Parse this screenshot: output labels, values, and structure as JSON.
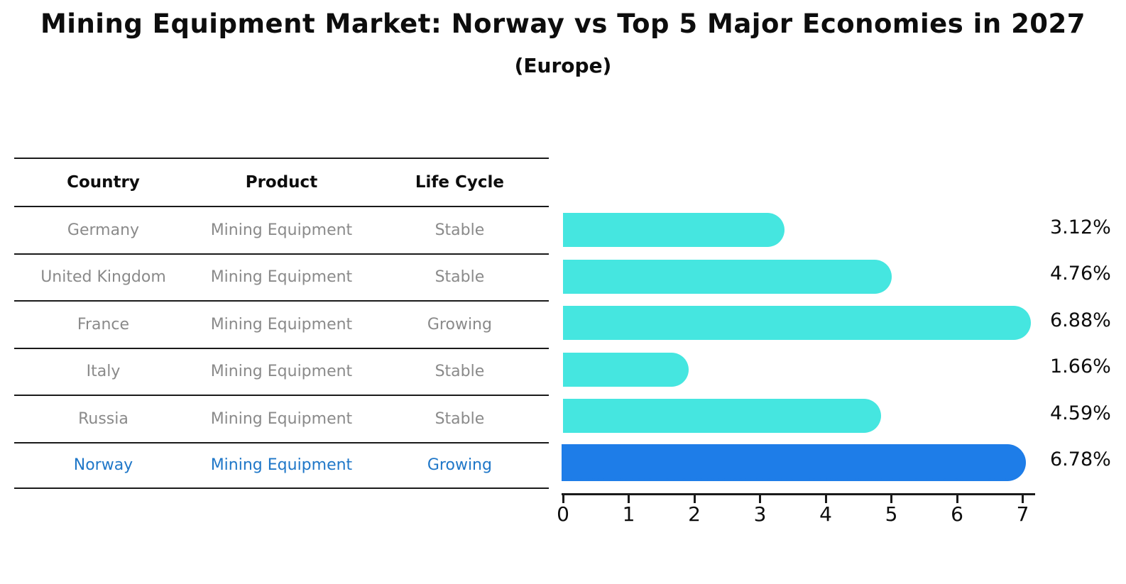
{
  "title": "Mining Equipment Market: Norway vs Top 5 Major Economies in 2027",
  "subtitle": "(Europe)",
  "table": {
    "headers": {
      "country": "Country",
      "product": "Product",
      "life_cycle": "Life Cycle"
    },
    "rows": [
      {
        "country": "Germany",
        "product": "Mining Equipment",
        "life_cycle": "Stable",
        "highlight": false
      },
      {
        "country": "United Kingdom",
        "product": "Mining Equipment",
        "life_cycle": "Stable",
        "highlight": false
      },
      {
        "country": "France",
        "product": "Mining Equipment",
        "life_cycle": "Growing",
        "highlight": false
      },
      {
        "country": "Italy",
        "product": "Mining Equipment",
        "life_cycle": "Stable",
        "highlight": false
      },
      {
        "country": "Russia",
        "product": "Mining Equipment",
        "life_cycle": "Stable",
        "highlight": false
      },
      {
        "country": "Norway",
        "product": "Mining Equipment",
        "life_cycle": "Growing",
        "highlight": true
      }
    ]
  },
  "chart_data": {
    "type": "bar",
    "orientation": "horizontal",
    "title": "Mining Equipment Market: Norway vs Top 5 Major Economies in 2027 (Europe)",
    "categories": [
      "Germany",
      "United Kingdom",
      "France",
      "Italy",
      "Russia",
      "Norway"
    ],
    "values": [
      3.12,
      4.76,
      6.88,
      1.66,
      4.59,
      6.78
    ],
    "value_labels": [
      "3.12%",
      "4.76%",
      "6.88%",
      "1.66%",
      "4.59%",
      "6.78%"
    ],
    "highlight_index": 5,
    "xlabel": "",
    "ylabel": "",
    "xticks": [
      "0",
      "1",
      "2",
      "3",
      "4",
      "5",
      "6",
      "7"
    ],
    "xlim": [
      0,
      7.3
    ],
    "grid": false,
    "legend": null,
    "bar_color": "#45E6E0",
    "highlight_bar_color": "#1E7DE8",
    "highlight_text_color": "#1F77C8"
  }
}
